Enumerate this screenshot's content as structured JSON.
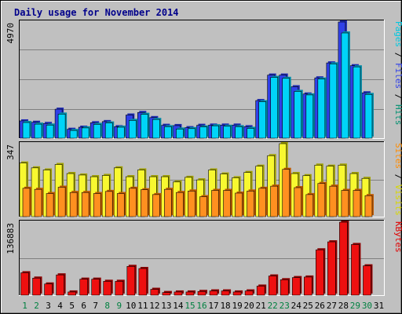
{
  "chart_data": [
    {
      "type": "bar",
      "title": "Daily usage for November 2014",
      "categories": [
        "1",
        "2",
        "3",
        "4",
        "5",
        "6",
        "7",
        "8",
        "9",
        "10",
        "11",
        "12",
        "13",
        "14",
        "15",
        "16",
        "17",
        "18",
        "19",
        "20",
        "21",
        "22",
        "23",
        "24",
        "25",
        "26",
        "27",
        "28",
        "29",
        "30",
        "31"
      ],
      "weekend_days": [
        "1",
        "2",
        "8",
        "9",
        "15",
        "16",
        "22",
        "23",
        "29",
        "30"
      ],
      "ymax_label": "4970",
      "ymax": 4970,
      "series": [
        {
          "name": "Hits",
          "values": [
            740,
            680,
            630,
            1240,
            380,
            470,
            660,
            710,
            490,
            990,
            1100,
            880,
            550,
            540,
            450,
            550,
            560,
            560,
            560,
            490,
            1610,
            2700,
            2700,
            2200,
            1890,
            2580,
            3220,
            4970,
            3100,
            1940,
            0
          ]
        },
        {
          "name": "Files",
          "values": [
            670,
            600,
            560,
            1030,
            330,
            440,
            590,
            650,
            470,
            760,
            1020,
            800,
            490,
            390,
            410,
            480,
            530,
            510,
            490,
            420,
            1560,
            2600,
            2560,
            2000,
            1850,
            2530,
            3180,
            4500,
            3050,
            1870,
            0
          ]
        },
        {
          "name": "Pages",
          "values": [
            0,
            0,
            0,
            0,
            0,
            0,
            0,
            0,
            0,
            0,
            0,
            0,
            0,
            0,
            0,
            0,
            0,
            0,
            0,
            0,
            0,
            0,
            0,
            0,
            0,
            0,
            0,
            0,
            0,
            0,
            0
          ]
        }
      ],
      "axis_labels": [
        {
          "text": "Pages",
          "color": "#00c8e0"
        },
        {
          "text": "Files",
          "color": "#3040e8"
        },
        {
          "text": "Hits",
          "color": "#009070"
        }
      ],
      "grid": true
    },
    {
      "type": "bar",
      "categories": [
        "1",
        "2",
        "3",
        "4",
        "5",
        "6",
        "7",
        "8",
        "9",
        "10",
        "11",
        "12",
        "13",
        "14",
        "15",
        "16",
        "17",
        "18",
        "19",
        "20",
        "21",
        "22",
        "23",
        "24",
        "25",
        "26",
        "27",
        "28",
        "29",
        "30",
        "31"
      ],
      "ymax_label": "347",
      "ymax": 347,
      "series": [
        {
          "name": "Visits",
          "values": [
            255,
            232,
            222,
            248,
            205,
            198,
            190,
            196,
            232,
            190,
            222,
            190,
            190,
            165,
            187,
            175,
            222,
            203,
            185,
            210,
            240,
            290,
            347,
            205,
            195,
            245,
            240,
            245,
            205,
            182,
            0
          ]
        },
        {
          "name": "Sites",
          "values": [
            135,
            130,
            110,
            140,
            115,
            115,
            110,
            120,
            110,
            135,
            128,
            105,
            130,
            115,
            122,
            95,
            125,
            125,
            112,
            122,
            135,
            145,
            225,
            138,
            105,
            158,
            145,
            125,
            125,
            100,
            0
          ]
        }
      ],
      "axis_labels": [
        {
          "text": "Sites",
          "color": "#ff8c00"
        },
        {
          "text": "Visits",
          "color": "#d8d800"
        }
      ],
      "grid": true
    },
    {
      "type": "bar",
      "categories": [
        "1",
        "2",
        "3",
        "4",
        "5",
        "6",
        "7",
        "8",
        "9",
        "10",
        "11",
        "12",
        "13",
        "14",
        "15",
        "16",
        "17",
        "18",
        "19",
        "20",
        "21",
        "22",
        "23",
        "24",
        "25",
        "26",
        "27",
        "28",
        "29",
        "30",
        "31"
      ],
      "ymax_label": "136883",
      "ymax": 136883,
      "series": [
        {
          "name": "KBytes",
          "values": [
            42000,
            32000,
            21000,
            38000,
            6000,
            30000,
            30000,
            26000,
            26000,
            54000,
            50000,
            11000,
            5000,
            6000,
            6000,
            7000,
            8000,
            8000,
            6000,
            8000,
            17000,
            36000,
            29000,
            33000,
            34000,
            85000,
            100000,
            136883,
            95000,
            55000,
            0
          ]
        }
      ],
      "axis_labels": [
        {
          "text": "KBytes",
          "color": "#e00000"
        }
      ],
      "grid": true
    }
  ]
}
